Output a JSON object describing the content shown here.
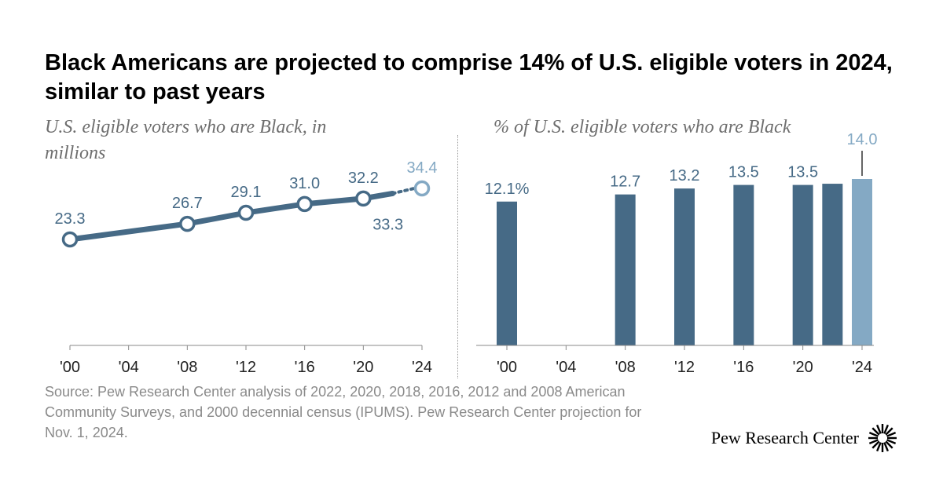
{
  "title": "Black Americans are projected to comprise 14% of U.S. eligible voters in 2024, similar to past years",
  "source": "Source: Pew Research Center analysis of 2022, 2020, 2018, 2016, 2012 and 2008 American Community Surveys, and 2000 decennial census (IPUMS). Pew Research Center projection for Nov. 1, 2024.",
  "brand": "Pew Research Center",
  "colors": {
    "dark": "#466a86",
    "light": "#84a9c4",
    "axis": "#8a8a8a",
    "tick_text": "#222222"
  },
  "chart_data": [
    {
      "type": "line",
      "subtitle": "U.S. eligible voters who are Black, in millions",
      "x_ticks": [
        "'00",
        "'04",
        "'08",
        "'12",
        "'16",
        "'20",
        "'24"
      ],
      "x_tick_years": [
        2000,
        2004,
        2008,
        2012,
        2016,
        2020,
        2024
      ],
      "xlim": [
        2000,
        2024
      ],
      "ylim": [
        0,
        36
      ],
      "points": [
        {
          "x": 2000,
          "y": 23.3,
          "label": "23.3",
          "projected": false,
          "label_pos": "above"
        },
        {
          "x": 2008,
          "y": 26.7,
          "label": "26.7",
          "projected": false,
          "label_pos": "above"
        },
        {
          "x": 2012,
          "y": 29.1,
          "label": "29.1",
          "projected": false,
          "label_pos": "above"
        },
        {
          "x": 2016,
          "y": 31.0,
          "label": "31.0",
          "projected": false,
          "label_pos": "above"
        },
        {
          "x": 2020,
          "y": 32.2,
          "label": "32.2",
          "projected": false,
          "label_pos": "above"
        },
        {
          "x": 2022,
          "y": 33.3,
          "label": "33.3",
          "projected": false,
          "label_pos": "below"
        },
        {
          "x": 2024,
          "y": 34.4,
          "label": "34.4",
          "projected": true,
          "label_pos": "above"
        }
      ]
    },
    {
      "type": "bar",
      "subtitle": "% of U.S. eligible voters who are Black",
      "x_ticks": [
        "'00",
        "'04",
        "'08",
        "'12",
        "'16",
        "'20",
        "'24"
      ],
      "x_tick_years": [
        2000,
        2004,
        2008,
        2012,
        2016,
        2020,
        2024
      ],
      "xlim": [
        2000,
        2024
      ],
      "ylim": [
        0,
        14.5
      ],
      "bars": [
        {
          "x": 2000,
          "value": 12.1,
          "label": "12.1%",
          "projected": false
        },
        {
          "x": 2008,
          "value": 12.7,
          "label": "12.7",
          "projected": false
        },
        {
          "x": 2012,
          "value": 13.2,
          "label": "13.2",
          "projected": false
        },
        {
          "x": 2016,
          "value": 13.5,
          "label": "13.5",
          "projected": false
        },
        {
          "x": 2020,
          "value": 13.5,
          "label": "13.5",
          "projected": false
        },
        {
          "x": 2022,
          "value": 13.6,
          "label": "",
          "projected": false
        },
        {
          "x": 2024,
          "value": 14.0,
          "label": "14.0",
          "projected": true
        }
      ]
    }
  ]
}
